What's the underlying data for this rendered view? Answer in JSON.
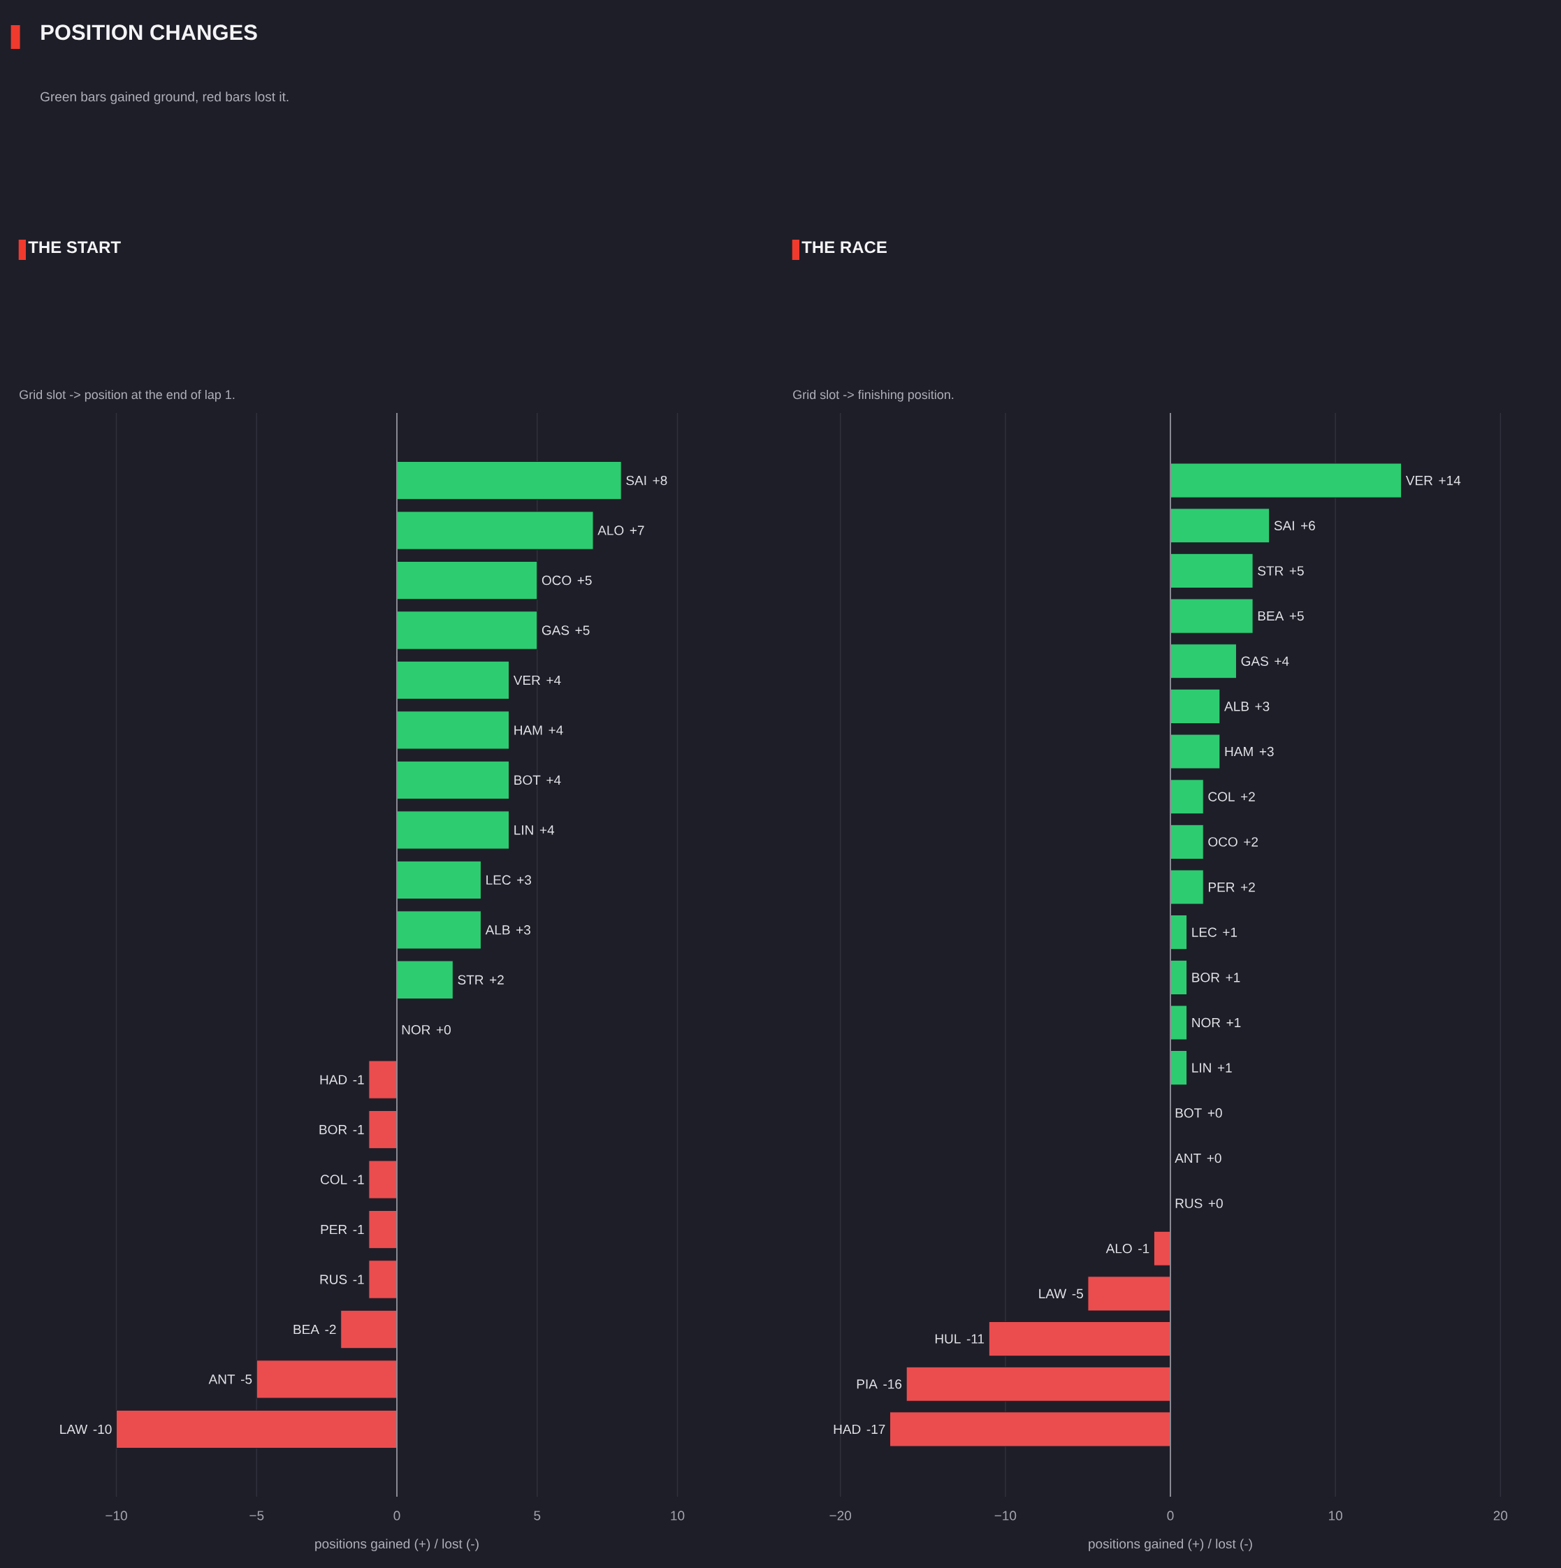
{
  "chart_data": [
    {
      "type": "other",
      "title": "POSITION CHANGES",
      "subtitle": "Green bars gained ground, red bars lost it."
    },
    {
      "type": "bar",
      "orientation": "horizontal",
      "title": "THE START",
      "subtitle": "Grid slot -> position at the end of lap 1.",
      "xlabel": "positions gained (+) / lost (-)",
      "categories": [
        "SAI",
        "ALO",
        "OCO",
        "GAS",
        "VER",
        "HAM",
        "BOT",
        "LIN",
        "LEC",
        "ALB",
        "STR",
        "NOR",
        "HAD",
        "BOR",
        "COL",
        "PER",
        "RUS",
        "BEA",
        "ANT",
        "LAW"
      ],
      "values": [
        8,
        7,
        5,
        5,
        4,
        4,
        4,
        4,
        3,
        3,
        2,
        0,
        -1,
        -1,
        -1,
        -1,
        -1,
        -2,
        -5,
        -10
      ],
      "value_labels": [
        "+8",
        "+7",
        "+5",
        "+5",
        "+4",
        "+4",
        "+4",
        "+4",
        "+3",
        "+3",
        "+2",
        "+0",
        "-1",
        "-1",
        "-1",
        "-1",
        "-1",
        "-2",
        "-5",
        "-10"
      ],
      "colors": [
        "#2ecc71",
        "#2ecc71",
        "#2ecc71",
        "#2ecc71",
        "#2ecc71",
        "#2ecc71",
        "#2ecc71",
        "#2ecc71",
        "#2ecc71",
        "#2ecc71",
        "#2ecc71",
        null,
        "#eb4d4f",
        "#eb4d4f",
        "#eb4d4f",
        "#eb4d4f",
        "#eb4d4f",
        "#eb4d4f",
        "#eb4d4f",
        "#eb4d4f"
      ],
      "xlim": [
        -10,
        10
      ],
      "xticks": [
        {
          "value": -10,
          "label": "−10"
        },
        {
          "value": -5,
          "label": "−5"
        },
        0,
        5,
        10
      ],
      "grid": "x",
      "tick_labels": "x"
    },
    {
      "type": "bar",
      "orientation": "horizontal",
      "title": "THE RACE",
      "subtitle": "Grid slot -> finishing position.",
      "xlabel": "positions gained (+) / lost (-)",
      "categories": [
        "VER",
        "SAI",
        "STR",
        "BEA",
        "GAS",
        "ALB",
        "HAM",
        "COL",
        "OCO",
        "PER",
        "LEC",
        "BOR",
        "NOR",
        "LIN",
        "BOT",
        "ANT",
        "RUS",
        "ALO",
        "LAW",
        "HUL",
        "PIA",
        "HAD"
      ],
      "values": [
        14,
        6,
        5,
        5,
        4,
        3,
        3,
        2,
        2,
        2,
        1,
        1,
        1,
        1,
        0,
        0,
        0,
        -1,
        -5,
        -11,
        -16,
        -17
      ],
      "value_labels": [
        "+14",
        "+6",
        "+5",
        "+5",
        "+4",
        "+3",
        "+3",
        "+2",
        "+2",
        "+2",
        "+1",
        "+1",
        "+1",
        "+1",
        "+0",
        "+0",
        "+0",
        "-1",
        "-5",
        "-11",
        "-16",
        "-17"
      ],
      "colors": [
        "#2ecc71",
        "#2ecc71",
        "#2ecc71",
        "#2ecc71",
        "#2ecc71",
        "#2ecc71",
        "#2ecc71",
        "#2ecc71",
        "#2ecc71",
        "#2ecc71",
        "#2ecc71",
        "#2ecc71",
        "#2ecc71",
        "#2ecc71",
        null,
        null,
        null,
        "#eb4d4f",
        "#eb4d4f",
        "#eb4d4f",
        "#eb4d4f",
        "#eb4d4f"
      ],
      "xlim": [
        -20,
        20
      ],
      "xticks": [
        {
          "value": -20,
          "label": "−20"
        },
        {
          "value": -10,
          "label": "−10"
        },
        0,
        10,
        20
      ],
      "grid": "x",
      "tick_labels": "x"
    }
  ]
}
